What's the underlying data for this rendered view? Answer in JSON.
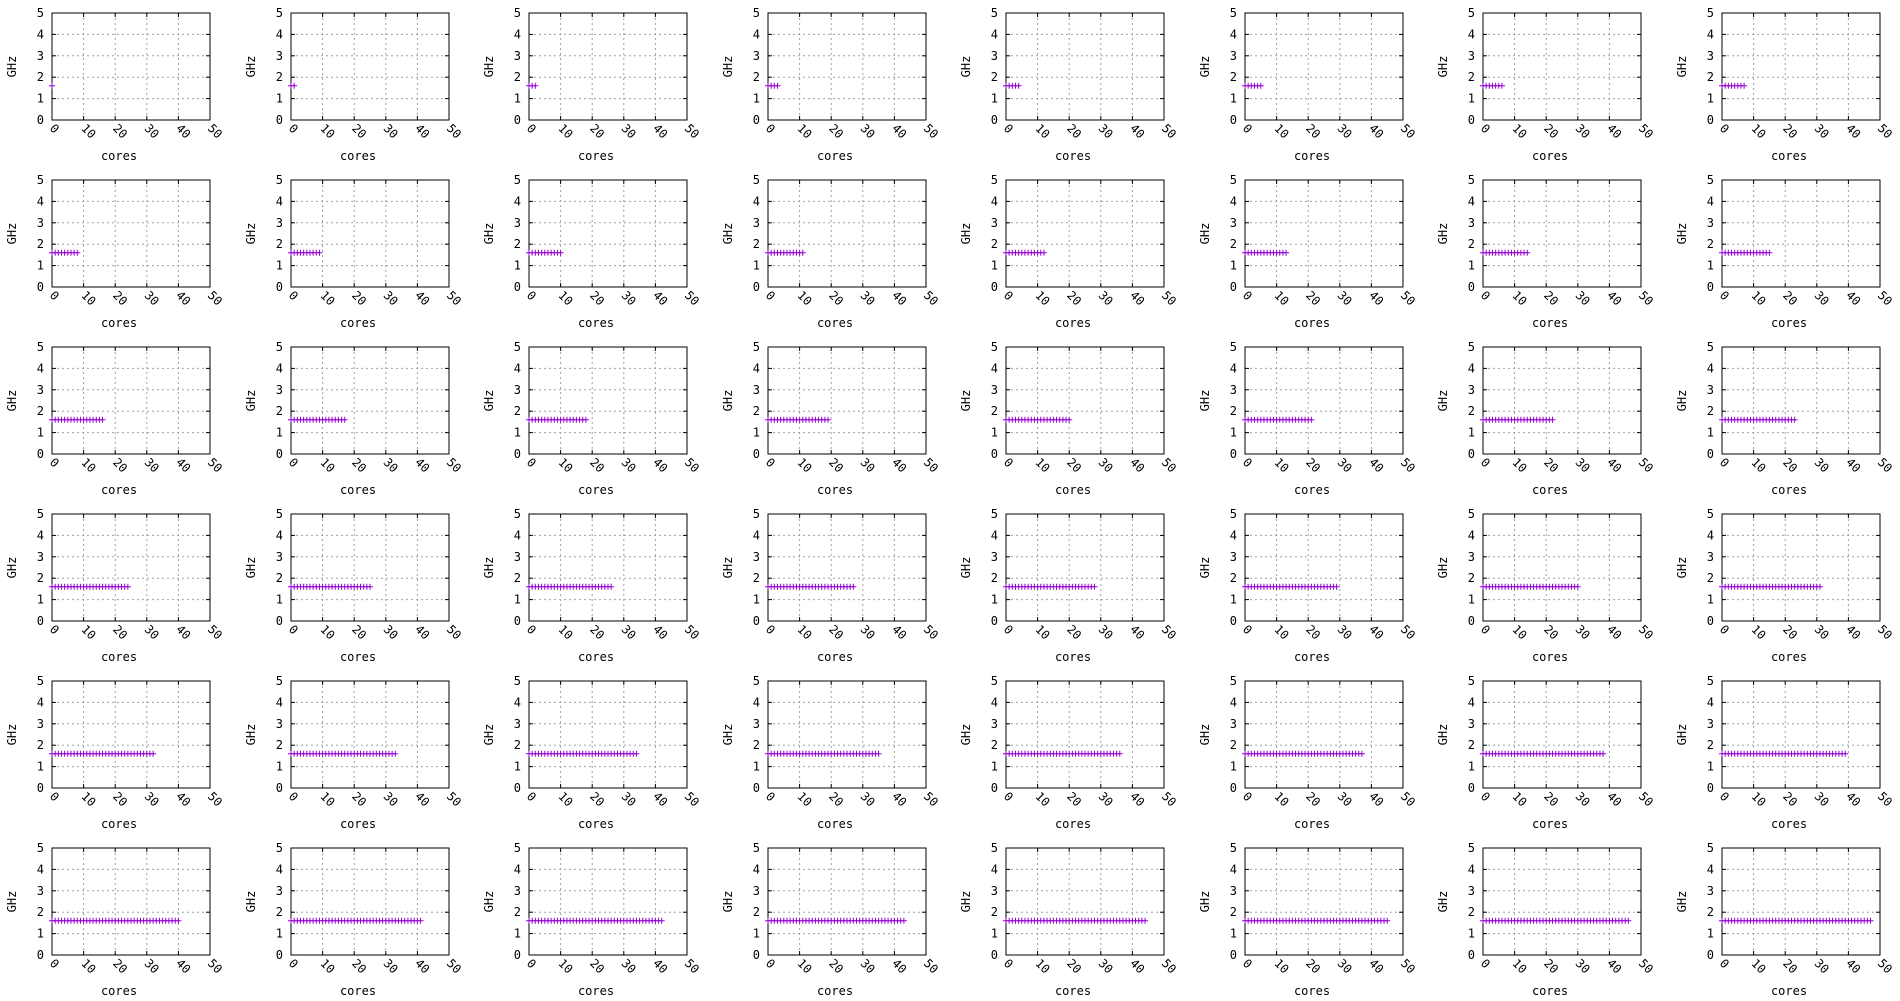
{
  "chart_data": {
    "type": "scatter",
    "layout": "grid of 48 small-multiple scatter plots (6 rows x 8 columns)",
    "xlabel": "cores",
    "ylabel": "GHz",
    "xlim": [
      0,
      50
    ],
    "ylim": [
      0,
      5
    ],
    "xticks": [
      "0",
      "10",
      "20",
      "30",
      "40",
      "50"
    ],
    "yticks": [
      "0",
      "1",
      "2",
      "3",
      "4",
      "5"
    ],
    "x_tick_rotation": "rotated about -45 degrees",
    "grid": true,
    "grid_style": "dotted gray",
    "marker": "plus",
    "series_color": "#9400d3",
    "frequency_ghz": 1.6,
    "panel_max_core": [
      0,
      1,
      2,
      3,
      4,
      5,
      6,
      7,
      8,
      9,
      10,
      11,
      12,
      13,
      14,
      15,
      16,
      17,
      18,
      19,
      20,
      21,
      22,
      23,
      24,
      25,
      26,
      27,
      28,
      29,
      30,
      31,
      32,
      33,
      34,
      35,
      36,
      37,
      38,
      39,
      40,
      41,
      42,
      43,
      44,
      45,
      46,
      47
    ]
  }
}
